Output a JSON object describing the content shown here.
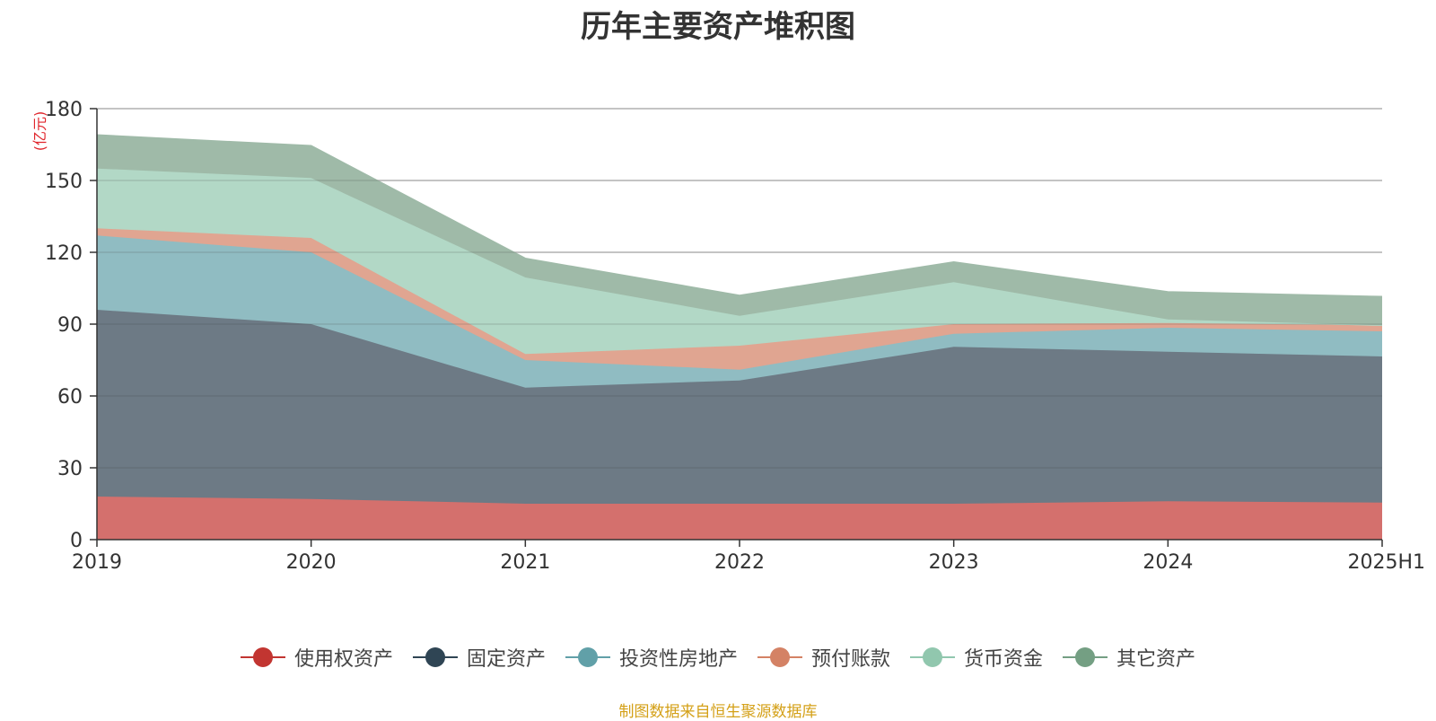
{
  "chart_data": {
    "type": "area",
    "stacked": true,
    "title": "历年主要资产堆积图",
    "ylabel": "亿元",
    "categories": [
      "2019",
      "2020",
      "2021",
      "2022",
      "2023",
      "2024",
      "2025H1"
    ],
    "ylim": [
      0,
      180
    ],
    "yticks": [
      0,
      30,
      60,
      90,
      120,
      150,
      180
    ],
    "grid": true,
    "legend_position": "bottom",
    "series": [
      {
        "name": "使用权资产",
        "color": "#c23531",
        "fill": "#d4706d",
        "values": [
          18,
          17,
          15,
          15,
          15,
          16,
          15.5
        ]
      },
      {
        "name": "固定资产",
        "color": "#2f4554",
        "fill": "#6d7a85",
        "values": [
          78,
          73,
          48.5,
          51.5,
          65.5,
          62.5,
          61
        ]
      },
      {
        "name": "投资性房地产",
        "color": "#61a0a8",
        "fill": "#90bcc2",
        "values": [
          31,
          30,
          11.5,
          4.5,
          5.5,
          10,
          10.5
        ]
      },
      {
        "name": "预付账款",
        "color": "#d48265",
        "fill": "#e0a591",
        "values": [
          3,
          6,
          2.5,
          10,
          4,
          2,
          2.5
        ]
      },
      {
        "name": "货币资金",
        "color": "#91c7ae",
        "fill": "#b2d8c6",
        "values": [
          25,
          25,
          32,
          12.5,
          17.5,
          1.5,
          0
        ]
      },
      {
        "name": "其它资产",
        "color": "#749f83",
        "fill": "#9fbaa8",
        "values": [
          14,
          13.5,
          8,
          8.5,
          8.5,
          11.5,
          12
        ]
      }
    ],
    "source_note": "制图数据来自恒生聚源数据库"
  }
}
